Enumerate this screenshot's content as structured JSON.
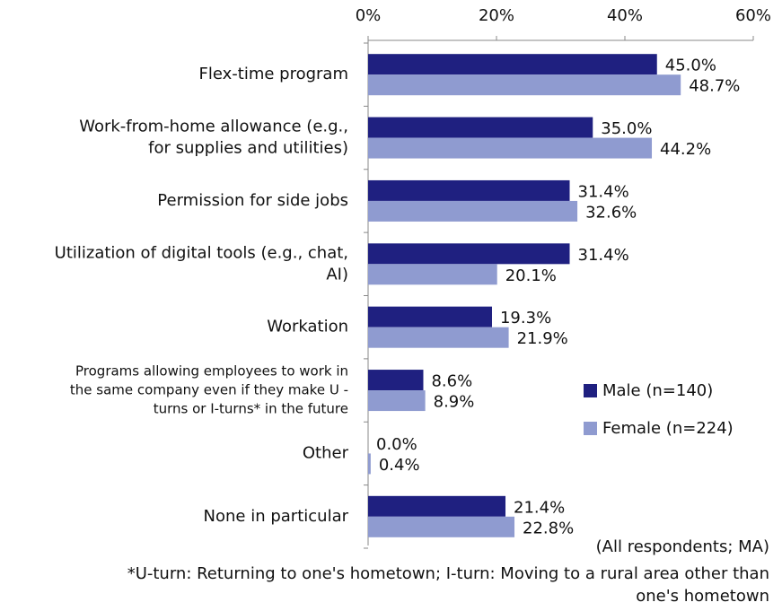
{
  "chart_data": {
    "type": "bar",
    "orientation": "horizontal",
    "categories": [
      [
        "Flex-time program"
      ],
      [
        "Work-from-home allowance (e.g.,",
        "for supplies and utilities)"
      ],
      [
        "Permission for side jobs"
      ],
      [
        "Utilization of digital tools (e.g., chat,",
        "AI)"
      ],
      [
        "Workation"
      ],
      [
        "Programs allowing employees to work in",
        "the same company even if they make U -",
        "turns or I-turns* in the future"
      ],
      [
        "Other"
      ],
      [
        "None in particular"
      ]
    ],
    "series": [
      {
        "name": "Male (n=140)",
        "color": "#1f2080",
        "values": [
          45.0,
          35.0,
          31.4,
          31.4,
          19.3,
          8.6,
          0.0,
          21.4
        ],
        "value_labels": [
          "45.0%",
          "35.0%",
          "31.4%",
          "31.4%",
          "19.3%",
          "8.6%",
          "0.0%",
          "21.4%"
        ]
      },
      {
        "name": "Female (n=224)",
        "color": "#8f9bd0",
        "values": [
          48.7,
          44.2,
          32.6,
          20.1,
          21.9,
          8.9,
          0.4,
          22.8
        ],
        "value_labels": [
          "48.7%",
          "44.2%",
          "32.6%",
          "20.1%",
          "21.9%",
          "8.9%",
          "0.4%",
          "22.8%"
        ]
      }
    ],
    "xlim": [
      0,
      60
    ],
    "xticks": [
      {
        "value": 0,
        "label": "0%"
      },
      {
        "value": 20,
        "label": "20%"
      },
      {
        "value": 40,
        "label": "40%"
      },
      {
        "value": 60,
        "label": "60%"
      }
    ],
    "legend": "right",
    "note": "(All respondents; MA)",
    "footnote": [
      "*U-turn: Returning to one's hometown; I-turn: Moving to a rural area other than",
      "one's hometown"
    ]
  }
}
